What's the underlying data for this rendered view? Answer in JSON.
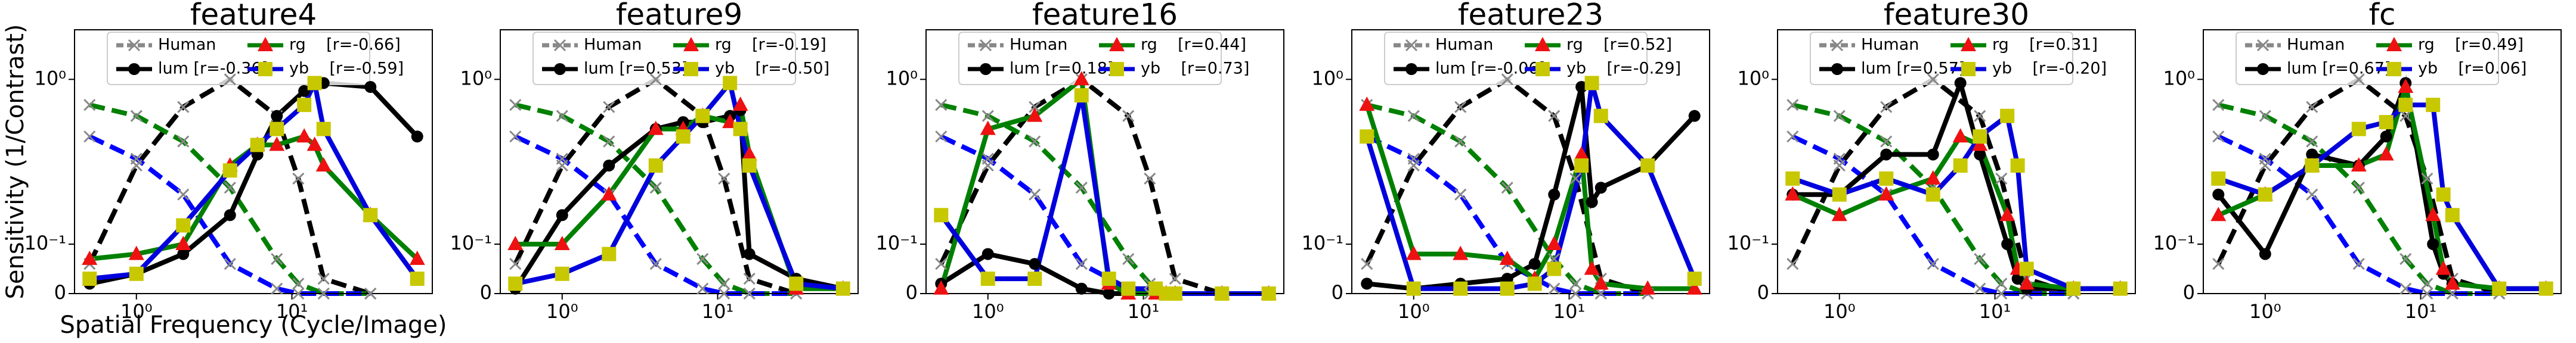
{
  "chart_data": [
    {
      "type": "line",
      "title": "feature4",
      "ylabel": "Sensitivity (1/Contrast)",
      "xlabel": "Spatial Frequency (Cycle/Image)",
      "xscale": "log",
      "yscale": "symlog",
      "y_linthresh": 0.1,
      "xlim": [
        0.4,
        80
      ],
      "ylim": [
        0,
        2
      ],
      "xticks": [
        {
          "value": 1,
          "label": "10⁰"
        },
        {
          "value": 10,
          "label": "10¹"
        }
      ],
      "yticks": [
        0,
        {
          "value": 0.1,
          "label": "10⁻¹"
        },
        {
          "value": 1,
          "label": "10⁰"
        }
      ],
      "human_label": "Human",
      "human_x": [
        0.5,
        1,
        2,
        4,
        8,
        11,
        16,
        32
      ],
      "human_series": [
        {
          "color": "#000000",
          "values": [
            0.06,
            0.3,
            0.68,
            1.0,
            0.6,
            0.25,
            0.03,
            0
          ]
        },
        {
          "color": "#008000",
          "values": [
            0.7,
            0.6,
            0.42,
            0.22,
            0.07,
            0.02,
            0,
            0
          ]
        },
        {
          "color": "#0000ff",
          "values": [
            0.45,
            0.33,
            0.2,
            0.06,
            0.01,
            0,
            0,
            0
          ]
        }
      ],
      "x": [
        0.5,
        1,
        2,
        4,
        6,
        8,
        12,
        14,
        16,
        32,
        64
      ],
      "series": [
        {
          "name": "lum [r=-0.36]",
          "color": "#000000",
          "marker": "o",
          "marker_color": "#000000",
          "values": [
            0.02,
            0.04,
            0.08,
            0.15,
            0.35,
            0.6,
            0.85,
            0.95,
            0.95,
            0.9,
            0.45
          ]
        },
        {
          "name": "rg    [r=-0.66]",
          "color": "#008000",
          "marker": "^",
          "marker_color": "#ee1111",
          "values": [
            0.07,
            0.08,
            0.1,
            0.3,
            0.4,
            0.4,
            0.45,
            0.4,
            0.3,
            0.15,
            0.07
          ]
        },
        {
          "name": "yb    [r=-0.59]",
          "color": "#0000dd",
          "marker": "s",
          "marker_color": "#c8c800",
          "values": [
            0.03,
            0.04,
            0.13,
            0.28,
            0.4,
            0.5,
            0.7,
            0.95,
            0.5,
            0.15,
            0.03
          ]
        }
      ]
    },
    {
      "type": "line",
      "title": "feature9",
      "xscale": "log",
      "yscale": "symlog",
      "y_linthresh": 0.1,
      "xlim": [
        0.4,
        80
      ],
      "ylim": [
        0,
        2
      ],
      "xticks": [
        {
          "value": 1,
          "label": "10⁰"
        },
        {
          "value": 10,
          "label": "10¹"
        }
      ],
      "yticks": [
        0,
        {
          "value": 0.1,
          "label": "10⁻¹"
        },
        {
          "value": 1,
          "label": "10⁰"
        }
      ],
      "human_label": "Human",
      "human_x": [
        0.5,
        1,
        2,
        4,
        8,
        11,
        16,
        32
      ],
      "human_series": [
        {
          "color": "#000000",
          "values": [
            0.06,
            0.3,
            0.68,
            1.0,
            0.6,
            0.25,
            0.03,
            0
          ]
        },
        {
          "color": "#008000",
          "values": [
            0.7,
            0.6,
            0.42,
            0.22,
            0.07,
            0.02,
            0,
            0
          ]
        },
        {
          "color": "#0000ff",
          "values": [
            0.45,
            0.33,
            0.2,
            0.06,
            0.01,
            0,
            0,
            0
          ]
        }
      ],
      "x": [
        0.5,
        1,
        2,
        4,
        6,
        8,
        12,
        14,
        16,
        32,
        64
      ],
      "series": [
        {
          "name": "lum [r=0.53]",
          "color": "#000000",
          "marker": "o",
          "marker_color": "#000000",
          "values": [
            0.01,
            0.15,
            0.3,
            0.5,
            0.55,
            0.55,
            0.6,
            0.65,
            0.08,
            0.03,
            0.01
          ]
        },
        {
          "name": "rg    [r=-0.19]",
          "color": "#008000",
          "marker": "^",
          "marker_color": "#ee1111",
          "values": [
            0.1,
            0.1,
            0.2,
            0.5,
            0.5,
            0.6,
            0.55,
            0.7,
            0.35,
            0.01,
            0.01
          ]
        },
        {
          "name": "yb    [r=-0.50]",
          "color": "#0000dd",
          "marker": "s",
          "marker_color": "#c8c800",
          "values": [
            0.02,
            0.04,
            0.08,
            0.3,
            0.45,
            0.6,
            0.95,
            0.5,
            0.3,
            0.02,
            0.01
          ]
        }
      ]
    },
    {
      "type": "line",
      "title": "feature16",
      "xscale": "log",
      "yscale": "symlog",
      "y_linthresh": 0.1,
      "xlim": [
        0.4,
        80
      ],
      "ylim": [
        0,
        2
      ],
      "xticks": [
        {
          "value": 1,
          "label": "10⁰"
        },
        {
          "value": 10,
          "label": "10¹"
        }
      ],
      "yticks": [
        0,
        {
          "value": 0.1,
          "label": "10⁻¹"
        },
        {
          "value": 1,
          "label": "10⁰"
        }
      ],
      "human_label": "Human",
      "human_x": [
        0.5,
        1,
        2,
        4,
        8,
        11,
        16,
        32
      ],
      "human_series": [
        {
          "color": "#000000",
          "values": [
            0.06,
            0.3,
            0.68,
            1.0,
            0.6,
            0.25,
            0.03,
            0
          ]
        },
        {
          "color": "#008000",
          "values": [
            0.7,
            0.6,
            0.42,
            0.22,
            0.07,
            0.02,
            0,
            0
          ]
        },
        {
          "color": "#0000ff",
          "values": [
            0.45,
            0.33,
            0.2,
            0.06,
            0.01,
            0,
            0,
            0
          ]
        }
      ],
      "x": [
        0.5,
        1,
        2,
        4,
        6,
        8,
        12,
        14,
        16,
        32,
        64
      ],
      "series": [
        {
          "name": "lum [r=0.18]",
          "color": "#000000",
          "marker": "o",
          "marker_color": "#000000",
          "values": [
            0.02,
            0.08,
            0.06,
            0.01,
            0,
            0,
            0,
            0,
            0,
            0,
            0
          ]
        },
        {
          "name": "rg    [r=0.44]",
          "color": "#008000",
          "marker": "^",
          "marker_color": "#ee1111",
          "values": [
            0.01,
            0.5,
            0.6,
            1.0,
            0.02,
            0,
            0,
            0,
            0,
            0,
            0
          ]
        },
        {
          "name": "yb    [r=0.73]",
          "color": "#0000dd",
          "marker": "s",
          "marker_color": "#c8c800",
          "values": [
            0.15,
            0.03,
            0.03,
            0.8,
            0.03,
            0.01,
            0.01,
            0,
            0,
            0,
            0
          ]
        }
      ]
    },
    {
      "type": "line",
      "title": "feature23",
      "xscale": "log",
      "yscale": "symlog",
      "y_linthresh": 0.1,
      "xlim": [
        0.4,
        80
      ],
      "ylim": [
        0,
        2
      ],
      "xticks": [
        {
          "value": 1,
          "label": "10⁰"
        },
        {
          "value": 10,
          "label": "10¹"
        }
      ],
      "yticks": [
        0,
        {
          "value": 0.1,
          "label": "10⁻¹"
        },
        {
          "value": 1,
          "label": "10⁰"
        }
      ],
      "human_label": "Human",
      "human_x": [
        0.5,
        1,
        2,
        4,
        8,
        11,
        16,
        32
      ],
      "human_series": [
        {
          "color": "#000000",
          "values": [
            0.06,
            0.3,
            0.68,
            1.0,
            0.6,
            0.25,
            0.03,
            0
          ]
        },
        {
          "color": "#008000",
          "values": [
            0.7,
            0.6,
            0.42,
            0.22,
            0.07,
            0.02,
            0,
            0
          ]
        },
        {
          "color": "#0000ff",
          "values": [
            0.45,
            0.33,
            0.2,
            0.06,
            0.01,
            0,
            0,
            0
          ]
        }
      ],
      "x": [
        0.5,
        1,
        2,
        4,
        6,
        8,
        12,
        14,
        16,
        32,
        64
      ],
      "series": [
        {
          "name": "lum [r=-0.06]",
          "color": "#000000",
          "marker": "o",
          "marker_color": "#000000",
          "values": [
            0.02,
            0.01,
            0.02,
            0.03,
            0.06,
            0.2,
            0.9,
            0.18,
            0.22,
            0.3,
            0.6
          ]
        },
        {
          "name": "rg    [r=0.52]",
          "color": "#008000",
          "marker": "^",
          "marker_color": "#ee1111",
          "values": [
            0.7,
            0.08,
            0.08,
            0.07,
            0.03,
            0.1,
            0.35,
            0.05,
            0.02,
            0.01,
            0.01
          ]
        },
        {
          "name": "yb    [r=-0.29]",
          "color": "#0000dd",
          "marker": "s",
          "marker_color": "#c8c800",
          "values": [
            0.45,
            0.01,
            0.01,
            0.01,
            0.02,
            0.05,
            0.3,
            0.95,
            0.6,
            0.3,
            0.03
          ]
        }
      ]
    },
    {
      "type": "line",
      "title": "feature30",
      "xscale": "log",
      "yscale": "symlog",
      "y_linthresh": 0.1,
      "xlim": [
        0.4,
        80
      ],
      "ylim": [
        0,
        2
      ],
      "xticks": [
        {
          "value": 1,
          "label": "10⁰"
        },
        {
          "value": 10,
          "label": "10¹"
        }
      ],
      "yticks": [
        0,
        {
          "value": 0.1,
          "label": "10⁻¹"
        },
        {
          "value": 1,
          "label": "10⁰"
        }
      ],
      "human_label": "Human",
      "human_x": [
        0.5,
        1,
        2,
        4,
        8,
        11,
        16,
        32
      ],
      "human_series": [
        {
          "color": "#000000",
          "values": [
            0.06,
            0.3,
            0.68,
            1.0,
            0.6,
            0.25,
            0.03,
            0
          ]
        },
        {
          "color": "#008000",
          "values": [
            0.7,
            0.6,
            0.42,
            0.22,
            0.07,
            0.02,
            0,
            0
          ]
        },
        {
          "color": "#0000ff",
          "values": [
            0.45,
            0.33,
            0.2,
            0.06,
            0.01,
            0,
            0,
            0
          ]
        }
      ],
      "x": [
        0.5,
        1,
        2,
        4,
        6,
        8,
        12,
        14,
        16,
        32,
        64
      ],
      "series": [
        {
          "name": "lum [r=0.57]",
          "color": "#000000",
          "marker": "o",
          "marker_color": "#000000",
          "values": [
            0.2,
            0.2,
            0.35,
            0.35,
            0.95,
            0.35,
            0.1,
            0.03,
            0.01,
            0.01,
            0.01
          ]
        },
        {
          "name": "rg    [r=0.31]",
          "color": "#008000",
          "marker": "^",
          "marker_color": "#ee1111",
          "values": [
            0.2,
            0.15,
            0.2,
            0.25,
            0.45,
            0.4,
            0.15,
            0.05,
            0.02,
            0.01,
            0.01
          ]
        },
        {
          "name": "yb    [r=-0.20]",
          "color": "#0000dd",
          "marker": "s",
          "marker_color": "#c8c800",
          "values": [
            0.25,
            0.2,
            0.25,
            0.2,
            0.3,
            0.45,
            0.6,
            0.3,
            0.05,
            0.01,
            0.01
          ]
        }
      ]
    },
    {
      "type": "line",
      "title": "fc",
      "xscale": "log",
      "yscale": "symlog",
      "y_linthresh": 0.1,
      "xlim": [
        0.4,
        80
      ],
      "ylim": [
        0,
        2
      ],
      "xticks": [
        {
          "value": 1,
          "label": "10⁰"
        },
        {
          "value": 10,
          "label": "10¹"
        }
      ],
      "yticks": [
        0,
        {
          "value": 0.1,
          "label": "10⁻¹"
        },
        {
          "value": 1,
          "label": "10⁰"
        }
      ],
      "human_label": "Human",
      "human_x": [
        0.5,
        1,
        2,
        4,
        8,
        11,
        16,
        32
      ],
      "human_series": [
        {
          "color": "#000000",
          "values": [
            0.06,
            0.3,
            0.68,
            1.0,
            0.6,
            0.25,
            0.03,
            0
          ]
        },
        {
          "color": "#008000",
          "values": [
            0.7,
            0.6,
            0.42,
            0.22,
            0.07,
            0.02,
            0,
            0
          ]
        },
        {
          "color": "#0000ff",
          "values": [
            0.45,
            0.33,
            0.2,
            0.06,
            0.01,
            0,
            0,
            0
          ]
        }
      ],
      "x": [
        0.5,
        1,
        2,
        4,
        6,
        8,
        12,
        14,
        16,
        32,
        64
      ],
      "series": [
        {
          "name": "lum [r=0.67]",
          "color": "#000000",
          "marker": "o",
          "marker_color": "#000000",
          "values": [
            0.2,
            0.08,
            0.35,
            0.3,
            0.45,
            0.95,
            0.1,
            0.04,
            0.02,
            0.01,
            0.01
          ]
        },
        {
          "name": "rg    [r=0.49]",
          "color": "#008000",
          "marker": "^",
          "marker_color": "#ee1111",
          "values": [
            0.15,
            0.2,
            0.3,
            0.3,
            0.35,
            0.9,
            0.15,
            0.05,
            0.02,
            0.01,
            0.01
          ]
        },
        {
          "name": "yb    [r=0.06]",
          "color": "#0000dd",
          "marker": "s",
          "marker_color": "#c8c800",
          "values": [
            0.25,
            0.2,
            0.3,
            0.5,
            0.55,
            0.7,
            0.7,
            0.2,
            0.15,
            0.01,
            0.01
          ]
        }
      ]
    }
  ]
}
